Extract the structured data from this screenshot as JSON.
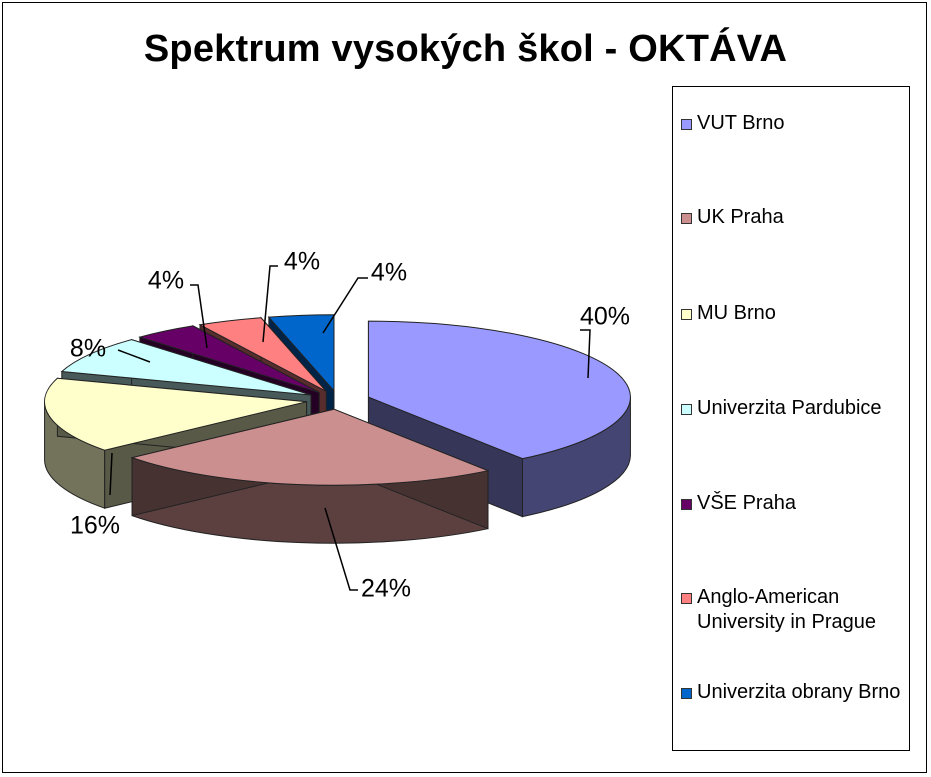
{
  "chart_data": {
    "type": "pie",
    "title": "Spektrum vysokých škol - OKTÁVA",
    "legend_position": "right",
    "style": "3d-exploded",
    "slices": [
      {
        "label": "VUT Brno",
        "value": 40,
        "display": "40%",
        "color": "#9999ff"
      },
      {
        "label": "UK Praha",
        "value": 24,
        "display": "24%",
        "color": "#cc8f8f"
      },
      {
        "label": "MU Brno",
        "value": 16,
        "display": "16%",
        "color": "#ffffcc"
      },
      {
        "label": "Univerzita Pardubice",
        "value": 8,
        "display": "8%",
        "color": "#ccffff"
      },
      {
        "label": "VŠE Praha",
        "value": 4,
        "display": "4%",
        "color": "#660066"
      },
      {
        "label": "Anglo-American University in Prague",
        "value": 4,
        "display": "4%",
        "color": "#ff8080"
      },
      {
        "label": "Univerzita obrany Brno",
        "value": 4,
        "display": "4%",
        "color": "#0066cc"
      }
    ]
  }
}
